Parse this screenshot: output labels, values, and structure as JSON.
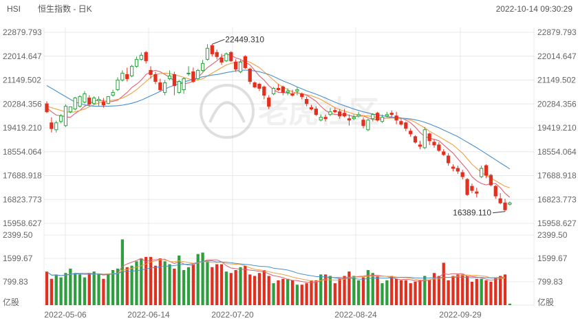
{
  "header": {
    "symbol": "HSI",
    "title": "恒生指数 - 日K",
    "datetime": "2022-10-14 09:30:29"
  },
  "watermark": "老虎社区",
  "colors": {
    "up": "#2f9e3f",
    "down": "#e03020",
    "ma5": "#e06070",
    "ma10": "#f0a040",
    "ma20": "#4a90d0",
    "grid": "#e8e8e8"
  },
  "chart_data": {
    "type": "candlestick",
    "title": "恒生指数 - 日K",
    "price_ticks": [
      "22879.793",
      "22014.647",
      "21149.502",
      "20284.356",
      "19419.210",
      "18554.064",
      "17688.918",
      "16823.773",
      "15958.627"
    ],
    "ylim": [
      15958.627,
      22879.793
    ],
    "volume_ticks": [
      "2399.50",
      "1599.67",
      "799.83"
    ],
    "volume_unit": "亿股",
    "volume_ylim": [
      0,
      2399.5
    ],
    "x_ticks": [
      "2022-05-06",
      "2022-06-14",
      "2022-07-20",
      "2022-08-24",
      "2022-09-29"
    ],
    "annotations": [
      {
        "label": "22449.310",
        "kind": "max",
        "value": 22449.31
      },
      {
        "label": "16389.110",
        "kind": "min",
        "value": 16389.11
      }
    ],
    "candles": [
      {
        "o": 20290,
        "h": 20380,
        "c": 20000,
        "l": 19950
      },
      {
        "o": 19600,
        "h": 19800,
        "c": 19390,
        "l": 19250
      },
      {
        "o": 19350,
        "h": 19680,
        "c": 19600,
        "l": 19250
      },
      {
        "o": 19650,
        "h": 19920,
        "c": 19850,
        "l": 19580
      },
      {
        "o": 19500,
        "h": 20270,
        "c": 20200,
        "l": 19450
      },
      {
        "o": 20000,
        "h": 20180,
        "c": 20180,
        "l": 19950
      },
      {
        "o": 20100,
        "h": 20540,
        "c": 20500,
        "l": 20050
      },
      {
        "o": 20200,
        "h": 20600,
        "c": 20550,
        "l": 20150
      },
      {
        "o": 20350,
        "h": 20750,
        "c": 20650,
        "l": 20300
      },
      {
        "o": 20500,
        "h": 20600,
        "c": 20280,
        "l": 20200
      },
      {
        "o": 20300,
        "h": 20560,
        "c": 20500,
        "l": 20250
      },
      {
        "o": 20400,
        "h": 20560,
        "c": 20450,
        "l": 20200
      },
      {
        "o": 20350,
        "h": 20500,
        "c": 20250,
        "l": 20150
      },
      {
        "o": 20300,
        "h": 20560,
        "c": 20550,
        "l": 20280
      },
      {
        "o": 20600,
        "h": 20800,
        "c": 20700,
        "l": 20550
      },
      {
        "o": 20800,
        "h": 21250,
        "c": 21150,
        "l": 20750
      },
      {
        "o": 21150,
        "h": 21500,
        "c": 21400,
        "l": 21100
      },
      {
        "o": 21350,
        "h": 21600,
        "c": 21200,
        "l": 21100
      },
      {
        "o": 21300,
        "h": 21700,
        "c": 21650,
        "l": 21250
      },
      {
        "o": 21650,
        "h": 22000,
        "c": 21900,
        "l": 21600
      },
      {
        "o": 21900,
        "h": 22150,
        "c": 22050,
        "l": 21850
      },
      {
        "o": 22150,
        "h": 22200,
        "c": 21850,
        "l": 21750
      },
      {
        "o": 21500,
        "h": 21650,
        "c": 21350,
        "l": 21200
      },
      {
        "o": 21350,
        "h": 21450,
        "c": 21100,
        "l": 21000
      },
      {
        "o": 21050,
        "h": 21200,
        "c": 20800,
        "l": 20750
      },
      {
        "o": 20700,
        "h": 21150,
        "c": 21050,
        "l": 20600
      },
      {
        "o": 21200,
        "h": 21500,
        "c": 21300,
        "l": 21150
      },
      {
        "o": 21350,
        "h": 21450,
        "c": 20950,
        "l": 20600
      },
      {
        "o": 20700,
        "h": 21150,
        "c": 21100,
        "l": 20650
      },
      {
        "o": 20800,
        "h": 21250,
        "c": 21200,
        "l": 20650
      },
      {
        "o": 21400,
        "h": 21650,
        "c": 21400,
        "l": 21300
      },
      {
        "o": 21450,
        "h": 21600,
        "c": 21100,
        "l": 21050
      },
      {
        "o": 21200,
        "h": 21550,
        "c": 21500,
        "l": 21150
      },
      {
        "o": 21500,
        "h": 21880,
        "c": 21750,
        "l": 21450
      },
      {
        "o": 21900,
        "h": 22450,
        "c": 22300,
        "l": 21850
      },
      {
        "o": 22400,
        "h": 22449.31,
        "c": 22100,
        "l": 22000
      },
      {
        "o": 22150,
        "h": 22250,
        "c": 22000,
        "l": 21900
      },
      {
        "o": 21950,
        "h": 22100,
        "c": 21800,
        "l": 21700
      },
      {
        "o": 21850,
        "h": 22150,
        "c": 22100,
        "l": 21800
      },
      {
        "o": 22150,
        "h": 22200,
        "c": 21850,
        "l": 21800
      },
      {
        "o": 21800,
        "h": 21900,
        "c": 21550,
        "l": 21450
      },
      {
        "o": 21450,
        "h": 21880,
        "c": 21800,
        "l": 21400
      },
      {
        "o": 22000,
        "h": 22050,
        "c": 21600,
        "l": 21550
      },
      {
        "o": 21550,
        "h": 21600,
        "c": 21100,
        "l": 21000
      },
      {
        "o": 21050,
        "h": 21100,
        "c": 20900,
        "l": 20850
      },
      {
        "o": 21000,
        "h": 21050,
        "c": 20850,
        "l": 20750
      },
      {
        "o": 20900,
        "h": 20950,
        "c": 20600,
        "l": 20450
      },
      {
        "o": 20500,
        "h": 20600,
        "c": 20200,
        "l": 20100
      },
      {
        "o": 20650,
        "h": 20900,
        "c": 20850,
        "l": 20600
      },
      {
        "o": 20850,
        "h": 21000,
        "c": 20800,
        "l": 20750
      },
      {
        "o": 20900,
        "h": 20950,
        "c": 20700,
        "l": 20600
      },
      {
        "o": 20700,
        "h": 20850,
        "c": 20750,
        "l": 20600
      },
      {
        "o": 20650,
        "h": 20800,
        "c": 20600,
        "l": 20550
      },
      {
        "o": 20750,
        "h": 20900,
        "c": 20800,
        "l": 20600
      },
      {
        "o": 20650,
        "h": 20700,
        "c": 20550,
        "l": 20450
      },
      {
        "o": 20450,
        "h": 20550,
        "c": 20300,
        "l": 20200
      },
      {
        "o": 20150,
        "h": 20250,
        "c": 20100,
        "l": 20050
      },
      {
        "o": 20100,
        "h": 20200,
        "c": 19900,
        "l": 19850
      },
      {
        "o": 19700,
        "h": 19900,
        "c": 19800,
        "l": 19650
      },
      {
        "o": 19800,
        "h": 19900,
        "c": 19750,
        "l": 19650
      },
      {
        "o": 19900,
        "h": 20150,
        "c": 20000,
        "l": 19850
      },
      {
        "o": 20050,
        "h": 20150,
        "c": 20000,
        "l": 19950
      },
      {
        "o": 20000,
        "h": 20100,
        "c": 19850,
        "l": 19750
      },
      {
        "o": 19950,
        "h": 20100,
        "c": 19850,
        "l": 19800
      },
      {
        "o": 19750,
        "h": 19900,
        "c": 19700,
        "l": 19500
      },
      {
        "o": 19750,
        "h": 19900,
        "c": 19800,
        "l": 19700
      },
      {
        "o": 19850,
        "h": 20000,
        "c": 19900,
        "l": 19800
      },
      {
        "o": 19700,
        "h": 19800,
        "c": 19500,
        "l": 19400
      },
      {
        "o": 19350,
        "h": 19750,
        "c": 19700,
        "l": 19300
      },
      {
        "o": 19750,
        "h": 19950,
        "c": 19900,
        "l": 19650
      },
      {
        "o": 19950,
        "h": 20000,
        "c": 19700,
        "l": 19650
      },
      {
        "o": 19650,
        "h": 19900,
        "c": 19800,
        "l": 19600
      },
      {
        "o": 19850,
        "h": 20000,
        "c": 19900,
        "l": 19800
      },
      {
        "o": 19950,
        "h": 20050,
        "c": 19900,
        "l": 19800
      },
      {
        "o": 19850,
        "h": 20000,
        "c": 19700,
        "l": 19550
      },
      {
        "o": 19650,
        "h": 19750,
        "c": 19550,
        "l": 19500
      },
      {
        "o": 19600,
        "h": 19650,
        "c": 19400,
        "l": 19300
      },
      {
        "o": 19300,
        "h": 19400,
        "c": 19200,
        "l": 19100
      },
      {
        "o": 19100,
        "h": 19150,
        "c": 18900,
        "l": 18850
      },
      {
        "o": 18800,
        "h": 18950,
        "c": 18750,
        "l": 18650
      },
      {
        "o": 18700,
        "h": 19450,
        "c": 19350,
        "l": 18650
      },
      {
        "o": 19200,
        "h": 19250,
        "c": 18950,
        "l": 18800
      },
      {
        "o": 18900,
        "h": 19000,
        "c": 18800,
        "l": 18700
      },
      {
        "o": 18800,
        "h": 18900,
        "c": 18600,
        "l": 18550
      },
      {
        "o": 18550,
        "h": 18650,
        "c": 18450,
        "l": 18400
      },
      {
        "o": 18400,
        "h": 18500,
        "c": 18150,
        "l": 18050
      },
      {
        "o": 18000,
        "h": 18100,
        "c": 17950,
        "l": 17850
      },
      {
        "o": 17950,
        "h": 18050,
        "c": 17850,
        "l": 17750
      },
      {
        "o": 17800,
        "h": 17900,
        "c": 17650,
        "l": 17550
      },
      {
        "o": 17550,
        "h": 17600,
        "c": 17000,
        "l": 16950
      },
      {
        "o": 17300,
        "h": 17400,
        "c": 17150,
        "l": 17050
      },
      {
        "o": 17100,
        "h": 17250,
        "c": 17050,
        "l": 16900
      },
      {
        "o": 17650,
        "h": 18050,
        "c": 17950,
        "l": 17600
      },
      {
        "o": 18050,
        "h": 18100,
        "c": 17700,
        "l": 17600
      },
      {
        "o": 17700,
        "h": 17750,
        "c": 17350,
        "l": 17300
      },
      {
        "o": 17300,
        "h": 17350,
        "c": 16950,
        "l": 16850
      },
      {
        "o": 16850,
        "h": 17050,
        "c": 16700,
        "l": 16650
      },
      {
        "o": 16700,
        "h": 16850,
        "c": 16450,
        "l": 16389.11
      },
      {
        "o": 16650,
        "h": 16750,
        "c": 16700,
        "l": 16600
      }
    ],
    "volumes": [
      1150,
      900,
      1050,
      950,
      1100,
      1250,
      1100,
      1050,
      950,
      1100,
      1150,
      1050,
      900,
      1050,
      1200,
      1250,
      2250,
      1300,
      1350,
      1500,
      1600,
      1650,
      1650,
      1350,
      1600,
      1500,
      1400,
      1250,
      1700,
      1200,
      1300,
      1400,
      1750,
      1800,
      1500,
      1300,
      1400,
      1400,
      1150,
      1100,
      1200,
      1300,
      1350,
      1050,
      1000,
      1100,
      1200,
      1000,
      750,
      850,
      900,
      900,
      850,
      700,
      700,
      750,
      850,
      850,
      1050,
      1050,
      1000,
      750,
      900,
      1000,
      1150,
      1000,
      850,
      950,
      1200,
      1100,
      1000,
      750,
      850,
      1000,
      900,
      850,
      850,
      750,
      800,
      850,
      1000,
      850,
      1100,
      1000,
      1450,
      850,
      1000,
      1050,
      1050,
      1000,
      800,
      900,
      900,
      850,
      800,
      950,
      1000,
      1050,
      50
    ],
    "ma5": [
      20150,
      20000,
      19880,
      19860,
      19820,
      19800,
      19940,
      20050,
      20200,
      20280,
      20400,
      20420,
      20400,
      20350,
      20380,
      20420,
      20560,
      20700,
      20880,
      21000,
      21150,
      21350,
      21450,
      21500,
      21450,
      21350,
      21250,
      21120,
      21050,
      21000,
      21050,
      21100,
      21250,
      21420,
      21600,
      21720,
      21850,
      22000,
      22080,
      22050,
      21950,
      21900,
      21800,
      21700,
      21500,
      21300,
      21150,
      20950,
      20800,
      20700,
      20700,
      20680,
      20650,
      20700,
      20650,
      20600,
      20500,
      20380,
      20200,
      20050,
      19950,
      19900,
      19900,
      19900,
      19880,
      19820,
      19850,
      19850,
      19780,
      19720,
      19720,
      19750,
      19780,
      19800,
      19800,
      19780,
      19700,
      19600,
      19450,
      19250,
      19100,
      19050,
      19000,
      18950,
      18800,
      18650,
      18500,
      18300,
      18100,
      17900,
      17650,
      17500,
      17400,
      17350,
      17400,
      17400,
      17250,
      17050,
      16900
    ],
    "ma10": [
      20200,
      20150,
      20100,
      20050,
      20000,
      19980,
      20000,
      20050,
      20100,
      20180,
      20250,
      20320,
      20380,
      20400,
      20420,
      20450,
      20500,
      20580,
      20680,
      20800,
      20950,
      21100,
      21250,
      21350,
      21380,
      21400,
      21380,
      21350,
      21300,
      21250,
      21200,
      21150,
      21150,
      21200,
      21300,
      21400,
      21500,
      21600,
      21700,
      21750,
      21800,
      21820,
      21850,
      21800,
      21700,
      21600,
      21450,
      21300,
      21150,
      21000,
      20900,
      20800,
      20720,
      20680,
      20650,
      20620,
      20580,
      20520,
      20450,
      20350,
      20250,
      20150,
      20080,
      20020,
      19980,
      19920,
      19880,
      19860,
      19850,
      19820,
      19800,
      19780,
      19770,
      19770,
      19770,
      19760,
      19730,
      19700,
      19620,
      19520,
      19420,
      19300,
      19200,
      19100,
      19000,
      18900,
      18800,
      18650,
      18500,
      18300,
      18100,
      17950,
      17800,
      17700,
      17600,
      17500,
      17400,
      17300,
      17250
    ],
    "ma20": [
      20950,
      20850,
      20750,
      20650,
      20550,
      20450,
      20350,
      20300,
      20250,
      20220,
      20200,
      20200,
      20200,
      20200,
      20210,
      20220,
      20240,
      20270,
      20310,
      20360,
      20420,
      20500,
      20580,
      20660,
      20740,
      20820,
      20900,
      20960,
      21020,
      21080,
      21130,
      21180,
      21230,
      21270,
      21300,
      21330,
      21350,
      21380,
      21420,
      21450,
      21480,
      21500,
      21510,
      21500,
      21480,
      21450,
      21400,
      21350,
      21280,
      21200,
      21120,
      21050,
      20980,
      20900,
      20830,
      20760,
      20700,
      20640,
      20570,
      20500,
      20420,
      20350,
      20280,
      20220,
      20160,
      20100,
      20050,
      20000,
      19960,
      19920,
      19890,
      19860,
      19830,
      19810,
      19790,
      19770,
      19760,
      19740,
      19710,
      19670,
      19620,
      19560,
      19490,
      19420,
      19340,
      19260,
      19180,
      19100,
      19000,
      18900,
      18800,
      18700,
      18590,
      18480,
      18370,
      18260,
      18150,
      18040,
      17930
    ]
  }
}
